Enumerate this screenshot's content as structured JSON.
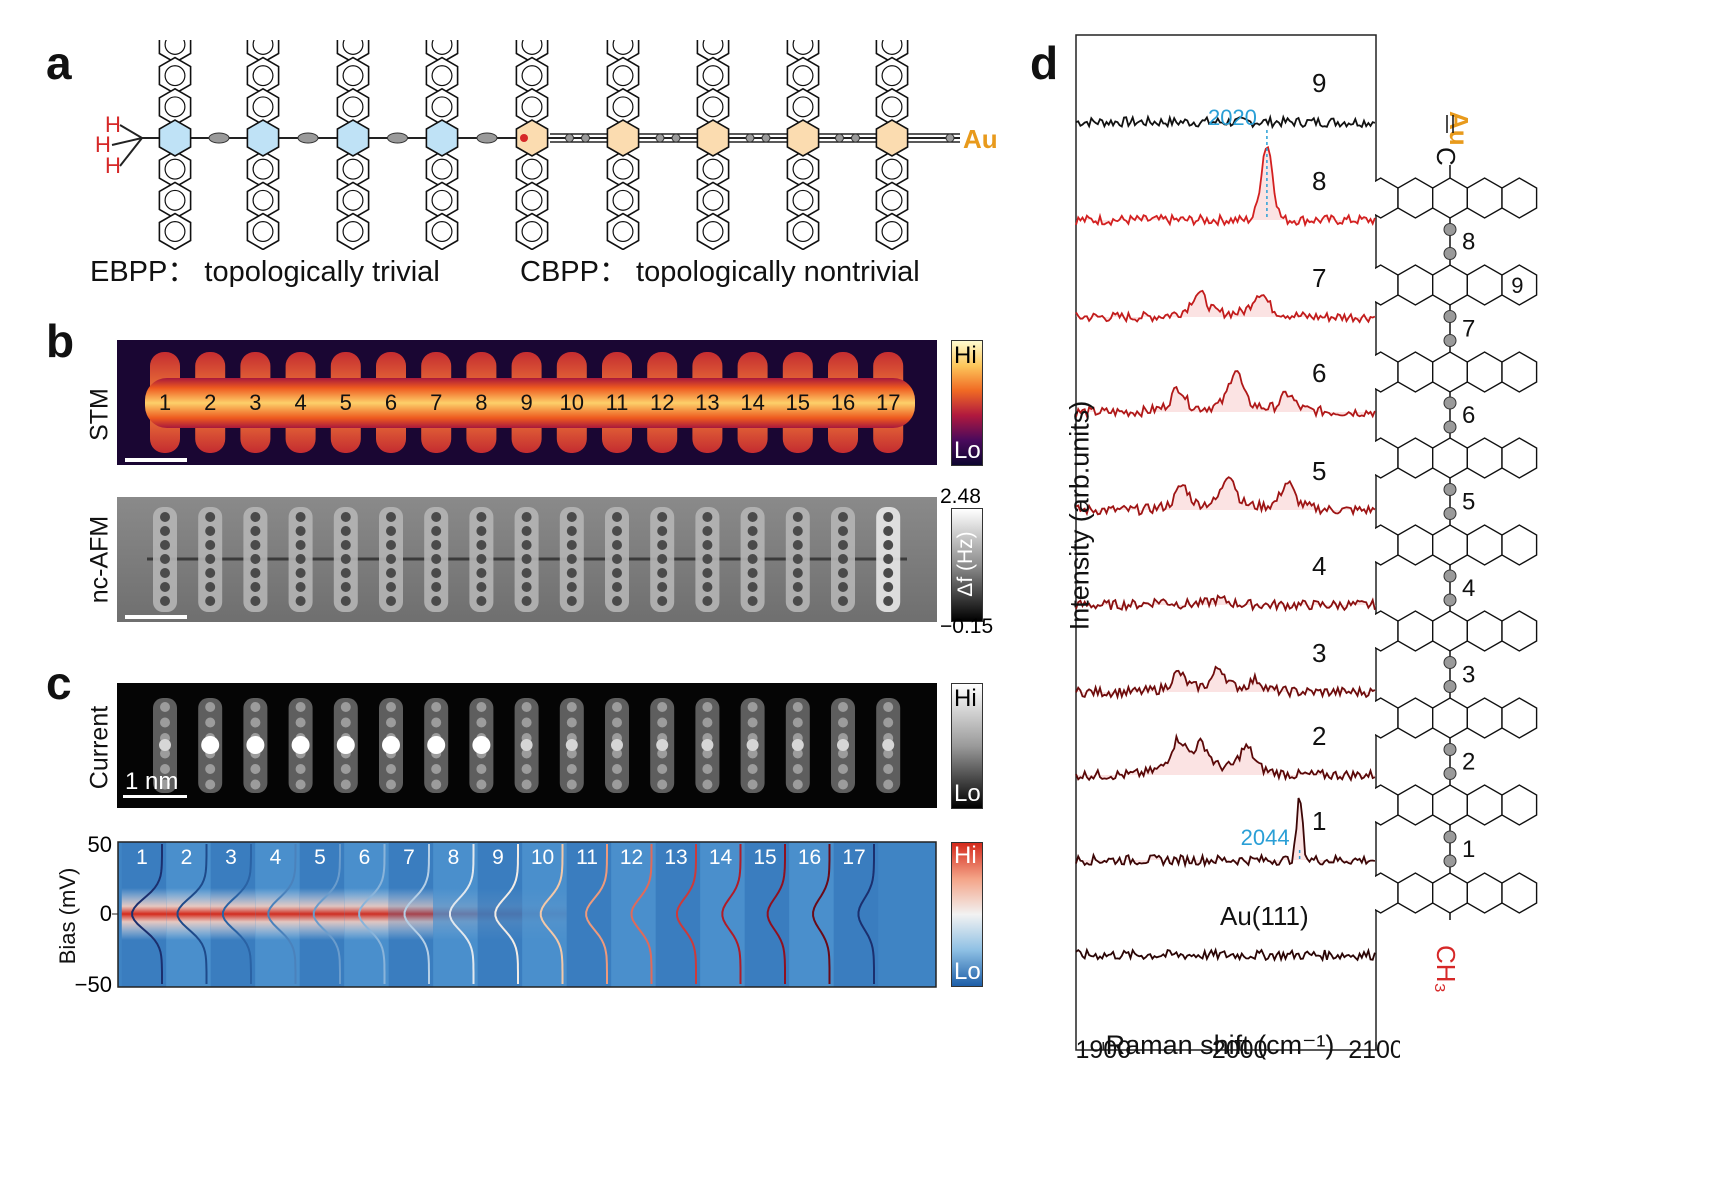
{
  "panels": {
    "a": "a",
    "b": "b",
    "c": "c",
    "d": "d"
  },
  "panel_a": {
    "hydrogen_labels": [
      "H",
      "H",
      "H"
    ],
    "au_label": "Au",
    "ebpp_caption": "EBPP： topologically trivial",
    "cbpp_caption": "CBPP： topologically nontrivial",
    "colors": {
      "ebpp_ring": "#bfe2f6",
      "cbpp_ring": "#fbdcb0",
      "hydrogen": "#d62828",
      "au": "#e89a1c",
      "bond_atom": "#9a9a9a"
    }
  },
  "panel_b": {
    "stm_label": "STM",
    "afm_label": "nc-AFM",
    "unit_numbers": [
      "1",
      "2",
      "3",
      "4",
      "5",
      "6",
      "7",
      "8",
      "9",
      "10",
      "11",
      "12",
      "13",
      "14",
      "15",
      "16",
      "17"
    ],
    "stm_colorbar": {
      "hi": "Hi",
      "lo": "Lo"
    },
    "afm_colorbar": {
      "max": "2.48",
      "min": "−0.15",
      "label": "Δf (Hz)"
    }
  },
  "panel_c": {
    "current_label": "Current",
    "scale_bar": "1 nm",
    "current_colorbar": {
      "hi": "Hi",
      "lo": "Lo"
    },
    "bias_colorbar": {
      "hi": "Hi",
      "lo": "Lo"
    },
    "bias_map": {
      "ylabel": "Bias (mV)",
      "yticks": [
        "50",
        "0",
        "−50"
      ],
      "column_numbers": [
        "1",
        "2",
        "3",
        "4",
        "5",
        "6",
        "7",
        "8",
        "9",
        "10",
        "11",
        "12",
        "13",
        "14",
        "15",
        "16",
        "17"
      ],
      "zero_bias_intensity": [
        1.0,
        1.0,
        0.98,
        0.97,
        0.96,
        0.95,
        0.7,
        0.2,
        0.1,
        0.05,
        0.0,
        0.0,
        0.0,
        0.0,
        0.0,
        0.0,
        0.0
      ]
    }
  },
  "chart_data": {
    "type": "line",
    "xlabel": "Raman shift (cm⁻¹)",
    "ylabel": "Intensity (arb.units)",
    "xlim": [
      1880,
      2100
    ],
    "xticks": [
      "1900",
      "2000",
      "2100"
    ],
    "series": [
      {
        "name": "9",
        "peaks": [],
        "color": "#111111"
      },
      {
        "name": "8",
        "peaks": [
          [
            2020,
            1.0
          ]
        ],
        "color": "#d32020"
      },
      {
        "name": "7",
        "peaks": [
          [
            1970,
            0.45
          ],
          [
            2015,
            0.45
          ]
        ],
        "color": "#c21c1c"
      },
      {
        "name": "6",
        "peaks": [
          [
            1955,
            0.4
          ],
          [
            1997,
            0.7
          ],
          [
            2035,
            0.3
          ]
        ],
        "color": "#b01818"
      },
      {
        "name": "5",
        "peaks": [
          [
            1958,
            0.4
          ],
          [
            1992,
            0.6
          ],
          [
            2035,
            0.45
          ]
        ],
        "color": "#9e1414"
      },
      {
        "name": "4",
        "peaks": [
          [
            1942,
            0.15
          ],
          [
            1985,
            0.2
          ]
        ],
        "color": "#8a1010"
      },
      {
        "name": "3",
        "peaks": [
          [
            1955,
            0.4
          ],
          [
            1985,
            0.5
          ],
          [
            2012,
            0.25
          ]
        ],
        "color": "#6e0c0c"
      },
      {
        "name": "2",
        "peaks": [
          [
            1955,
            0.6
          ],
          [
            1972,
            0.5
          ],
          [
            2005,
            0.5
          ]
        ],
        "color": "#5a0808"
      },
      {
        "name": "1",
        "peaks": [
          [
            2044,
            1.0
          ]
        ],
        "color": "#3c0606"
      },
      {
        "name": "Au(111)",
        "peaks": [],
        "color": "#2a0505"
      }
    ],
    "annotations": [
      {
        "text": "2020",
        "x": 2020
      },
      {
        "text": "2044",
        "x": 2044
      }
    ]
  },
  "panel_d_structure": {
    "top_atoms": [
      "Au",
      "C"
    ],
    "bottom_label": "CH₃",
    "bond_numbers": [
      "8",
      "7",
      "6",
      "5",
      "4",
      "3",
      "2",
      "1"
    ],
    "ring_label": "9"
  }
}
